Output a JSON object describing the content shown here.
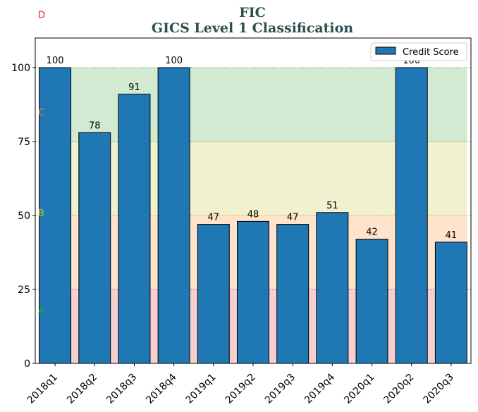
{
  "title": {
    "line1": "FIC",
    "line2": "GICS Level 1 Classification"
  },
  "chart_data": {
    "type": "bar",
    "categories": [
      "2018q1",
      "2018q2",
      "2018q3",
      "2018q4",
      "2019q1",
      "2019q2",
      "2019q3",
      "2019q4",
      "2020q1",
      "2020q2",
      "2020q3"
    ],
    "series": [
      {
        "name": "Credit Score",
        "values": [
          100,
          78,
          91,
          100,
          47,
          48,
          47,
          51,
          42,
          100,
          41
        ],
        "color": "#1f77b4"
      }
    ],
    "ylim": [
      0,
      110
    ],
    "yticks": [
      0,
      25,
      50,
      75,
      100
    ],
    "grid": false,
    "legend": "top-right",
    "bands": [
      {
        "from": 0,
        "to": 25,
        "color": "#d62728"
      },
      {
        "from": 25,
        "to": 50,
        "color": "#ff7f0e"
      },
      {
        "from": 50,
        "to": 75,
        "color": "#bcbd22"
      },
      {
        "from": 75,
        "to": 100,
        "color": "#2ca02c"
      }
    ],
    "threshold_lines": [
      {
        "value": 25,
        "color": "#d62728"
      },
      {
        "value": 50,
        "color": "#ff7f0e"
      },
      {
        "value": 75,
        "color": "#8c8c1a"
      },
      {
        "value": 100,
        "color": "#2ca02c"
      }
    ],
    "grade_labels": [
      {
        "text": "A",
        "value": 18,
        "color": "#2ca02c"
      },
      {
        "text": "B",
        "value": 51,
        "color": "#bcbd22"
      },
      {
        "text": "C",
        "value": 85,
        "color": "#ff7f0e"
      },
      {
        "text": "D",
        "value": 118,
        "color": "#d62728"
      }
    ]
  }
}
